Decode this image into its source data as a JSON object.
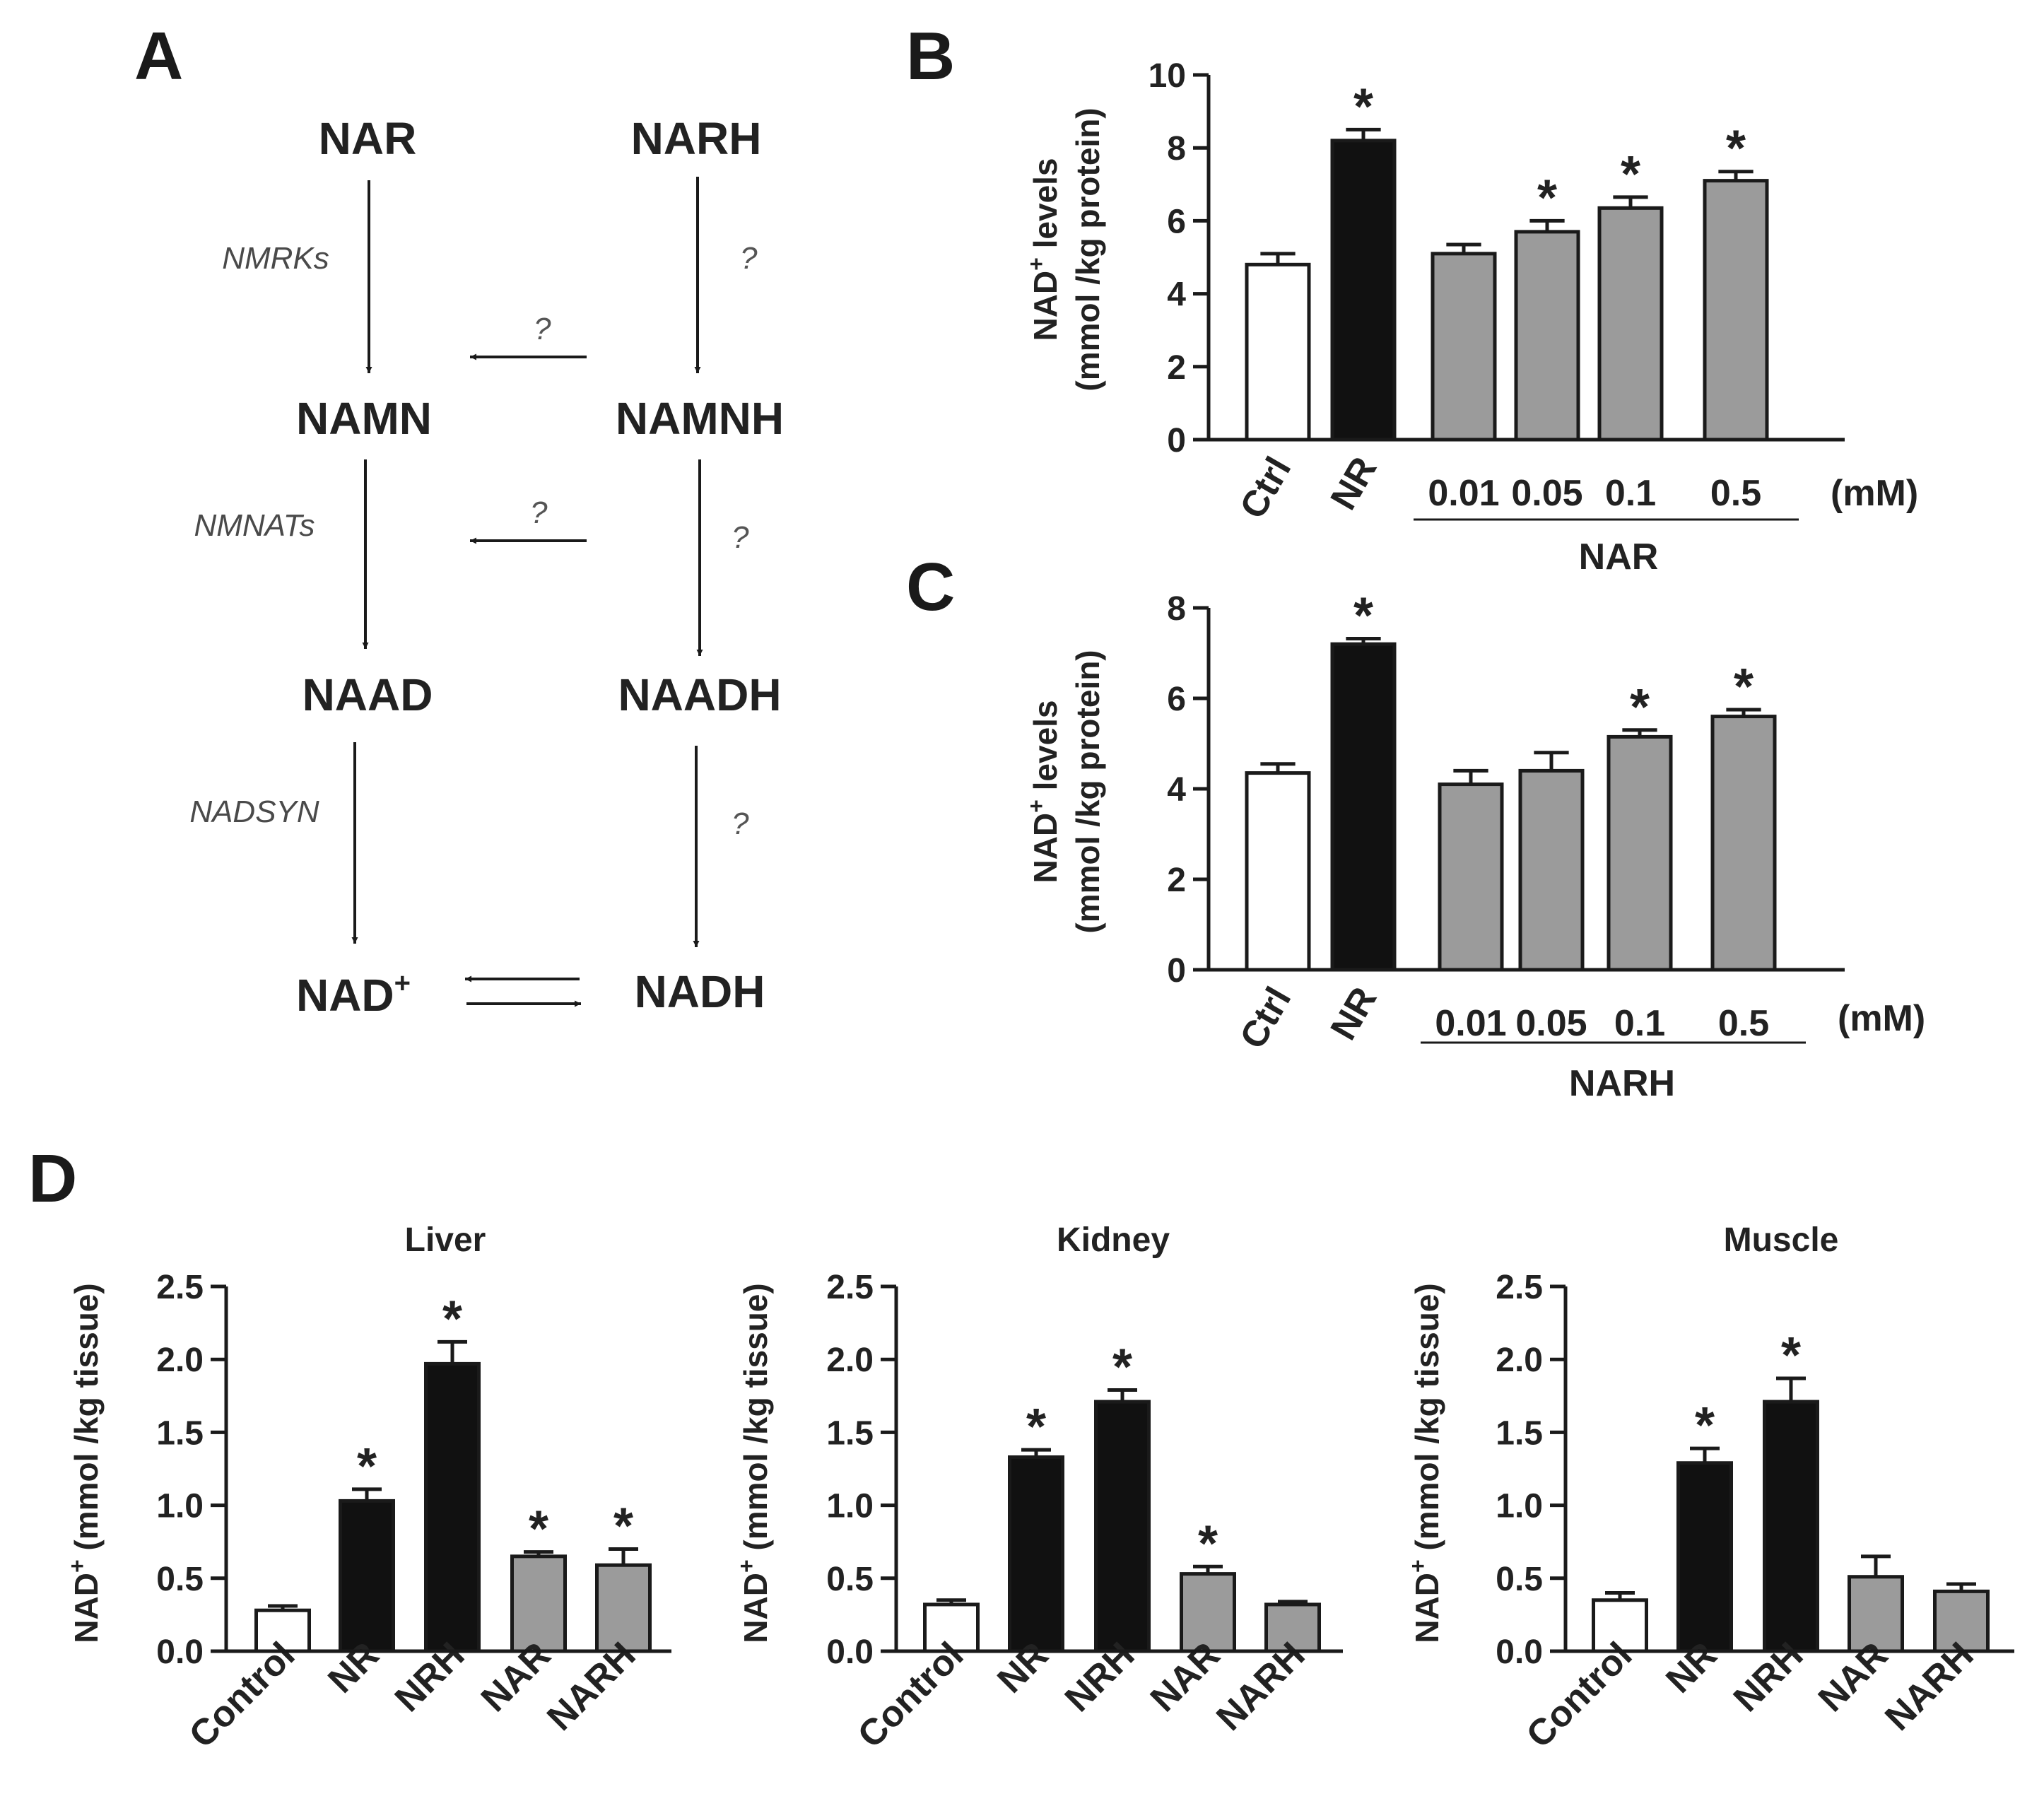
{
  "colors": {
    "white": "#ffffff",
    "black": "#111111",
    "gray": "#9b9b9b",
    "stroke": "#1a1a1a"
  },
  "panelA": {
    "letter": "A",
    "metabolites": {
      "nar": "NAR",
      "narh": "NARH",
      "namn": "NAMN",
      "namnh": "NAMNH",
      "naad": "NAAD",
      "naadh": "NAADH",
      "nad": "NAD",
      "nad_sup": "+",
      "nadh": "NADH"
    },
    "enzymes": {
      "nmrks": "NMRKs",
      "nmnats": "NMNATs",
      "nadsyn": "NADSYN"
    },
    "unknown": "?"
  },
  "chart_data": [
    {
      "panel": "B",
      "type": "bar",
      "categories": [
        "Ctrl",
        "NR",
        "0.01",
        "0.05",
        "0.1",
        "0.5"
      ],
      "values": [
        4.8,
        8.2,
        5.1,
        5.7,
        6.35,
        7.1
      ],
      "errors": [
        0.3,
        0.3,
        0.25,
        0.3,
        0.3,
        0.25
      ],
      "fills": [
        "white",
        "black",
        "gray",
        "gray",
        "gray",
        "gray"
      ],
      "significant": [
        false,
        true,
        false,
        true,
        true,
        true
      ],
      "ylabel_line1": "NAD",
      "ylabel_sup": "+",
      "ylabel_line1_rest": " levels",
      "ylabel_line2": "(mmol /kg protein)",
      "ylim": [
        0,
        10
      ],
      "yticks": [
        "0",
        "2",
        "4",
        "6",
        "8",
        "10"
      ],
      "unit": "(mM)",
      "group_label": "NAR"
    },
    {
      "panel": "C",
      "type": "bar",
      "categories": [
        "Ctrl",
        "NR",
        "0.01",
        "0.05",
        "0.1",
        "0.5"
      ],
      "values": [
        4.35,
        7.2,
        4.1,
        4.4,
        5.15,
        5.6
      ],
      "errors": [
        0.2,
        0.12,
        0.3,
        0.4,
        0.15,
        0.15
      ],
      "fills": [
        "white",
        "black",
        "gray",
        "gray",
        "gray",
        "gray"
      ],
      "significant": [
        false,
        true,
        false,
        false,
        true,
        true
      ],
      "ylabel_line1": "NAD",
      "ylabel_sup": "+",
      "ylabel_line1_rest": " levels",
      "ylabel_line2": "(mmol /kg protein)",
      "ylim": [
        0,
        8
      ],
      "yticks": [
        "0",
        "2",
        "4",
        "6",
        "8"
      ],
      "unit": "(mM)",
      "group_label": "NARH"
    },
    {
      "panel": "D",
      "type": "bar",
      "title": "Liver",
      "categories": [
        "Control",
        "NR",
        "NRH",
        "NAR",
        "NARH"
      ],
      "values": [
        0.28,
        1.03,
        1.97,
        0.65,
        0.59
      ],
      "errors": [
        0.03,
        0.08,
        0.15,
        0.03,
        0.11
      ],
      "fills": [
        "white",
        "black",
        "black",
        "gray",
        "gray"
      ],
      "significant": [
        false,
        true,
        true,
        true,
        true
      ],
      "ylabel_main": "NAD",
      "ylabel_sup": "+",
      "ylabel_rest": " (mmol /kg tissue)",
      "ylim": [
        0,
        2.5
      ],
      "yticks": [
        "0.0",
        "0.5",
        "1.0",
        "1.5",
        "2.0",
        "2.5"
      ]
    },
    {
      "panel": "D2",
      "type": "bar",
      "title": "Kidney",
      "categories": [
        "Control",
        "NR",
        "NRH",
        "NAR",
        "NARH"
      ],
      "values": [
        0.32,
        1.33,
        1.71,
        0.53,
        0.32
      ],
      "errors": [
        0.03,
        0.05,
        0.08,
        0.05,
        0.02
      ],
      "fills": [
        "white",
        "black",
        "black",
        "gray",
        "gray"
      ],
      "significant": [
        false,
        true,
        true,
        true,
        false
      ],
      "ylabel_main": "NAD",
      "ylabel_sup": "+",
      "ylabel_rest": " (mmol /kg tissue)",
      "ylim": [
        0,
        2.5
      ],
      "yticks": [
        "0.0",
        "0.5",
        "1.0",
        "1.5",
        "2.0",
        "2.5"
      ]
    },
    {
      "panel": "D3",
      "type": "bar",
      "title": "Muscle",
      "categories": [
        "Control",
        "NR",
        "NRH",
        "NAR",
        "NARH"
      ],
      "values": [
        0.35,
        1.29,
        1.71,
        0.51,
        0.41
      ],
      "errors": [
        0.05,
        0.1,
        0.16,
        0.14,
        0.05
      ],
      "fills": [
        "white",
        "black",
        "black",
        "gray",
        "gray"
      ],
      "significant": [
        false,
        true,
        true,
        false,
        false
      ],
      "ylabel_main": "NAD",
      "ylabel_sup": "+",
      "ylabel_rest": " (mmol /kg tissue)",
      "ylim": [
        0,
        2.5
      ],
      "yticks": [
        "0.0",
        "0.5",
        "1.0",
        "1.5",
        "2.0",
        "2.5"
      ]
    }
  ],
  "panel_letters": {
    "b": "B",
    "c": "C",
    "d": "D"
  },
  "significance_marker": "*"
}
